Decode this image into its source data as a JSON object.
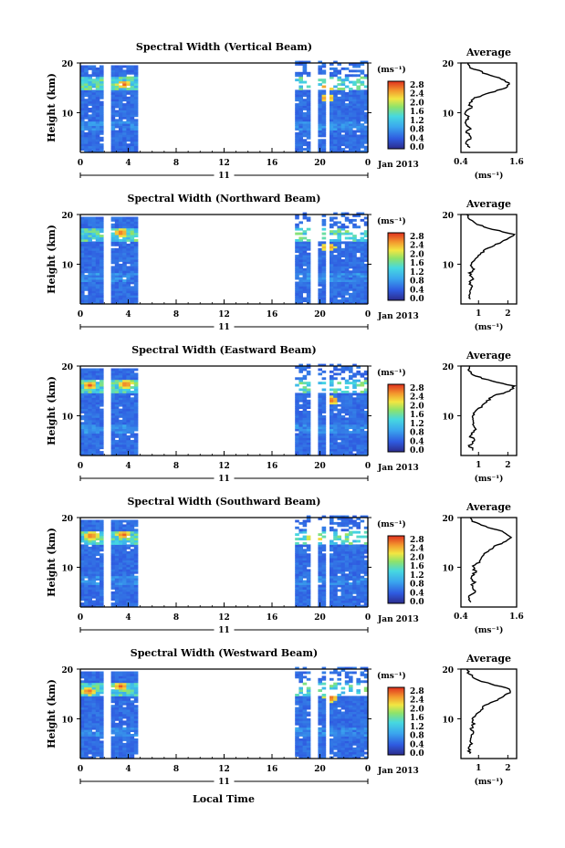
{
  "figure": {
    "xlabel": "Local Time",
    "date_label": "Jan 2013",
    "day_label": "11",
    "colorbar_unit": "(ms⁻¹)",
    "colorbar_ticks": [
      "2.8",
      "2.4",
      "2.0",
      "1.6",
      "1.2",
      "0.8",
      "0.4",
      "0.0"
    ],
    "avg_title": "Average",
    "avg_unit": "(ms⁻¹)"
  },
  "chart_data": [
    {
      "type": "heatmap",
      "title": "Spectral Width (Vertical Beam)",
      "ylabel": "Height (km)",
      "xlabel": "Local Time",
      "x_ticks": [
        "0",
        "4",
        "8",
        "12",
        "16",
        "20",
        "0"
      ],
      "xlim": [
        0,
        24
      ],
      "ylim": [
        2,
        20
      ],
      "y_ticks": [
        "20",
        "10"
      ],
      "data_gaps_hours": [
        [
          2.0,
          2.6
        ],
        [
          4.8,
          18.0
        ],
        [
          19.2,
          19.7
        ],
        [
          20.4,
          20.9
        ]
      ],
      "color_range": [
        0.0,
        3.0
      ],
      "high_values": [
        {
          "hour": 3.6,
          "height": 15.8
        },
        {
          "hour": 20.6,
          "height": 15.2
        },
        {
          "hour": 20.6,
          "height": 13.0
        }
      ],
      "average_profile": {
        "xlim": [
          0.4,
          1.6
        ],
        "x_ticks": [
          "0.4",
          "1.6"
        ],
        "height": [
          3,
          4,
          5,
          6,
          7,
          8,
          9,
          10,
          11,
          12,
          13,
          14,
          15,
          16,
          17,
          18,
          19,
          20
        ],
        "value": [
          0.58,
          0.5,
          0.62,
          0.52,
          0.6,
          0.5,
          0.55,
          0.5,
          0.62,
          0.58,
          0.72,
          1.02,
          1.4,
          1.45,
          1.2,
          0.9,
          0.62,
          0.55
        ]
      }
    },
    {
      "type": "heatmap",
      "title": "Spectral Width (Northward Beam)",
      "ylabel": "Height (km)",
      "xlabel": "Local Time",
      "x_ticks": [
        "0",
        "4",
        "8",
        "12",
        "16",
        "20",
        "0"
      ],
      "xlim": [
        0,
        24
      ],
      "ylim": [
        2,
        20
      ],
      "y_ticks": [
        "20",
        "10"
      ],
      "data_gaps_hours": [
        [
          2.0,
          2.6
        ],
        [
          4.8,
          18.0
        ],
        [
          19.2,
          19.7
        ],
        [
          20.4,
          20.9
        ]
      ],
      "color_range": [
        0.0,
        3.0
      ],
      "high_values": [
        {
          "hour": 3.4,
          "height": 16.4
        },
        {
          "hour": 20.7,
          "height": 13.5
        }
      ],
      "average_profile": {
        "xlim": [
          0.4,
          2.3
        ],
        "x_ticks": [
          "1",
          "2"
        ],
        "height": [
          3,
          4,
          5,
          6,
          7,
          8,
          9,
          10,
          11,
          12,
          13,
          14,
          15,
          16,
          17,
          18,
          19,
          20
        ],
        "value": [
          0.75,
          0.65,
          0.8,
          0.7,
          0.78,
          0.7,
          0.8,
          0.75,
          0.9,
          1.05,
          1.25,
          1.6,
          2.0,
          2.2,
          1.5,
          0.95,
          0.7,
          0.6
        ]
      }
    },
    {
      "type": "heatmap",
      "title": "Spectral Width (Eastward Beam)",
      "ylabel": "Height (km)",
      "xlabel": "Local Time",
      "x_ticks": [
        "0",
        "4",
        "8",
        "12",
        "16",
        "20",
        "0"
      ],
      "xlim": [
        0,
        24
      ],
      "ylim": [
        2,
        20
      ],
      "y_ticks": [
        "20",
        "10"
      ],
      "data_gaps_hours": [
        [
          2.0,
          2.6
        ],
        [
          4.8,
          18.0
        ],
        [
          19.2,
          19.7
        ],
        [
          20.4,
          20.9
        ]
      ],
      "color_range": [
        0.0,
        3.0
      ],
      "high_values": [
        {
          "hour": 0.8,
          "height": 16.2
        },
        {
          "hour": 3.8,
          "height": 16.4
        },
        {
          "hour": 21.0,
          "height": 13.2
        }
      ],
      "average_profile": {
        "xlim": [
          0.4,
          2.3
        ],
        "x_ticks": [
          "1",
          "2"
        ],
        "height": [
          3,
          4,
          5,
          6,
          7,
          8,
          9,
          10,
          11,
          12,
          13,
          14,
          15,
          16,
          17,
          18,
          19,
          20
        ],
        "value": [
          0.8,
          0.7,
          0.85,
          0.72,
          0.9,
          0.78,
          0.85,
          0.8,
          0.95,
          1.1,
          1.3,
          1.5,
          2.1,
          2.2,
          1.4,
          0.9,
          0.65,
          0.7
        ]
      }
    },
    {
      "type": "heatmap",
      "title": "Spectral Width (Southward Beam)",
      "ylabel": "Height (km)",
      "xlabel": "Local Time",
      "x_ticks": [
        "0",
        "4",
        "8",
        "12",
        "16",
        "20",
        "0"
      ],
      "xlim": [
        0,
        24
      ],
      "ylim": [
        2,
        20
      ],
      "y_ticks": [
        "20",
        "10"
      ],
      "data_gaps_hours": [
        [
          2.0,
          2.6
        ],
        [
          4.8,
          18.0
        ],
        [
          19.2,
          19.7
        ],
        [
          20.4,
          20.9
        ]
      ],
      "color_range": [
        0.0,
        3.0
      ],
      "high_values": [
        {
          "hour": 0.9,
          "height": 16.4
        },
        {
          "hour": 3.6,
          "height": 16.6
        },
        {
          "hour": 19.6,
          "height": 16.0
        }
      ],
      "average_profile": {
        "xlim": [
          0.4,
          1.6
        ],
        "x_ticks": [
          "0.4",
          "1.6"
        ],
        "height": [
          3,
          4,
          5,
          6,
          7,
          8,
          9,
          10,
          11,
          12,
          13,
          14,
          15,
          16,
          17,
          18,
          19,
          20
        ],
        "value": [
          0.6,
          0.55,
          0.7,
          0.62,
          0.68,
          0.6,
          0.72,
          0.65,
          0.78,
          0.85,
          0.95,
          1.1,
          1.3,
          1.5,
          1.35,
          1.0,
          0.7,
          0.6
        ]
      }
    },
    {
      "type": "heatmap",
      "title": "Spectral Width (Westward Beam)",
      "ylabel": "Height (km)",
      "xlabel": "Local Time",
      "x_ticks": [
        "0",
        "4",
        "8",
        "12",
        "16",
        "20",
        "0"
      ],
      "xlim": [
        0,
        24
      ],
      "ylim": [
        2,
        20
      ],
      "y_ticks": [
        "20",
        "10"
      ],
      "data_gaps_hours": [
        [
          2.0,
          2.6
        ],
        [
          4.8,
          18.0
        ],
        [
          19.2,
          19.7
        ],
        [
          20.4,
          20.9
        ]
      ],
      "color_range": [
        0.0,
        3.0
      ],
      "high_values": [
        {
          "hour": 0.7,
          "height": 15.6
        },
        {
          "hour": 3.4,
          "height": 16.6
        },
        {
          "hour": 20.9,
          "height": 14.2
        }
      ],
      "average_profile": {
        "xlim": [
          0.4,
          2.3
        ],
        "x_ticks": [
          "1",
          "2"
        ],
        "height": [
          3,
          4,
          5,
          6,
          7,
          8,
          9,
          10,
          11,
          12,
          13,
          14,
          15,
          16,
          17,
          18,
          19,
          20
        ],
        "value": [
          0.7,
          0.65,
          0.8,
          0.7,
          0.85,
          0.75,
          0.82,
          0.78,
          0.95,
          1.1,
          1.3,
          1.7,
          2.0,
          2.1,
          1.4,
          0.9,
          0.7,
          0.6
        ]
      }
    }
  ]
}
